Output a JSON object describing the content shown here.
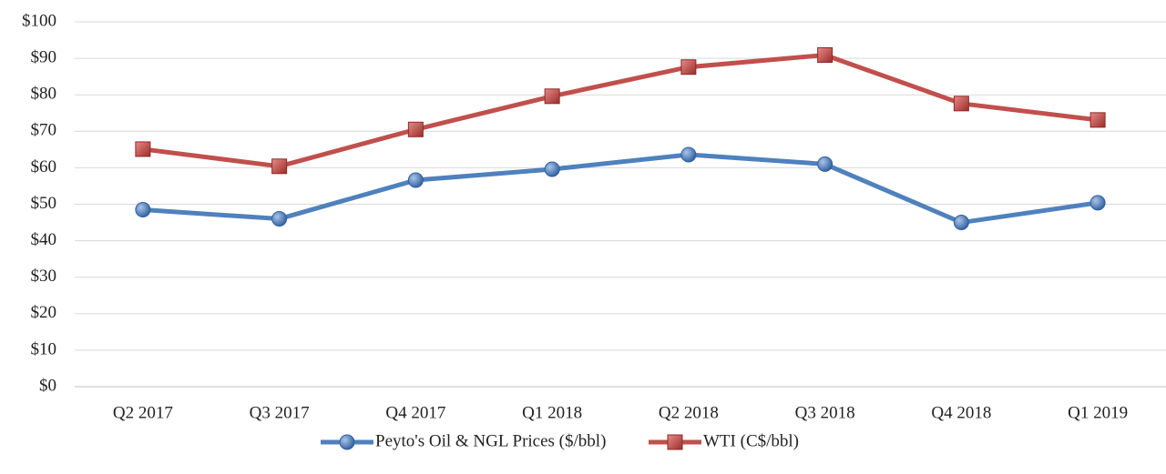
{
  "chart_data": {
    "type": "line",
    "categories": [
      "Q2 2017",
      "Q3 2017",
      "Q4 2017",
      "Q1 2018",
      "Q2 2018",
      "Q3 2018",
      "Q4 2018",
      "Q1 2019"
    ],
    "series": [
      {
        "name": "Peyto's Oil & NGL Prices ($/bbl)",
        "color": "#4f81bd",
        "marker": "circle",
        "values": [
          48.5,
          46,
          56.6,
          59.6,
          63.6,
          61,
          45,
          50.4
        ]
      },
      {
        "name": "WTI (C$/bbl)",
        "color": "#c0504d",
        "marker": "square",
        "values": [
          65.1,
          60.4,
          70.5,
          79.6,
          87.6,
          90.9,
          77.6,
          73.1
        ]
      }
    ],
    "ylim": [
      0,
      100
    ],
    "yticks": [
      {
        "value": 0,
        "label": "$0"
      },
      {
        "value": 10,
        "label": "$10"
      },
      {
        "value": 20,
        "label": "$20"
      },
      {
        "value": 30,
        "label": "$30"
      },
      {
        "value": 40,
        "label": "$40"
      },
      {
        "value": 50,
        "label": "$50"
      },
      {
        "value": 60,
        "label": "$60"
      },
      {
        "value": 70,
        "label": "$70"
      },
      {
        "value": 80,
        "label": "$80"
      },
      {
        "value": 90,
        "label": "$90"
      },
      {
        "value": 100,
        "label": "$100"
      }
    ],
    "grid": true,
    "legend": "bottom"
  }
}
